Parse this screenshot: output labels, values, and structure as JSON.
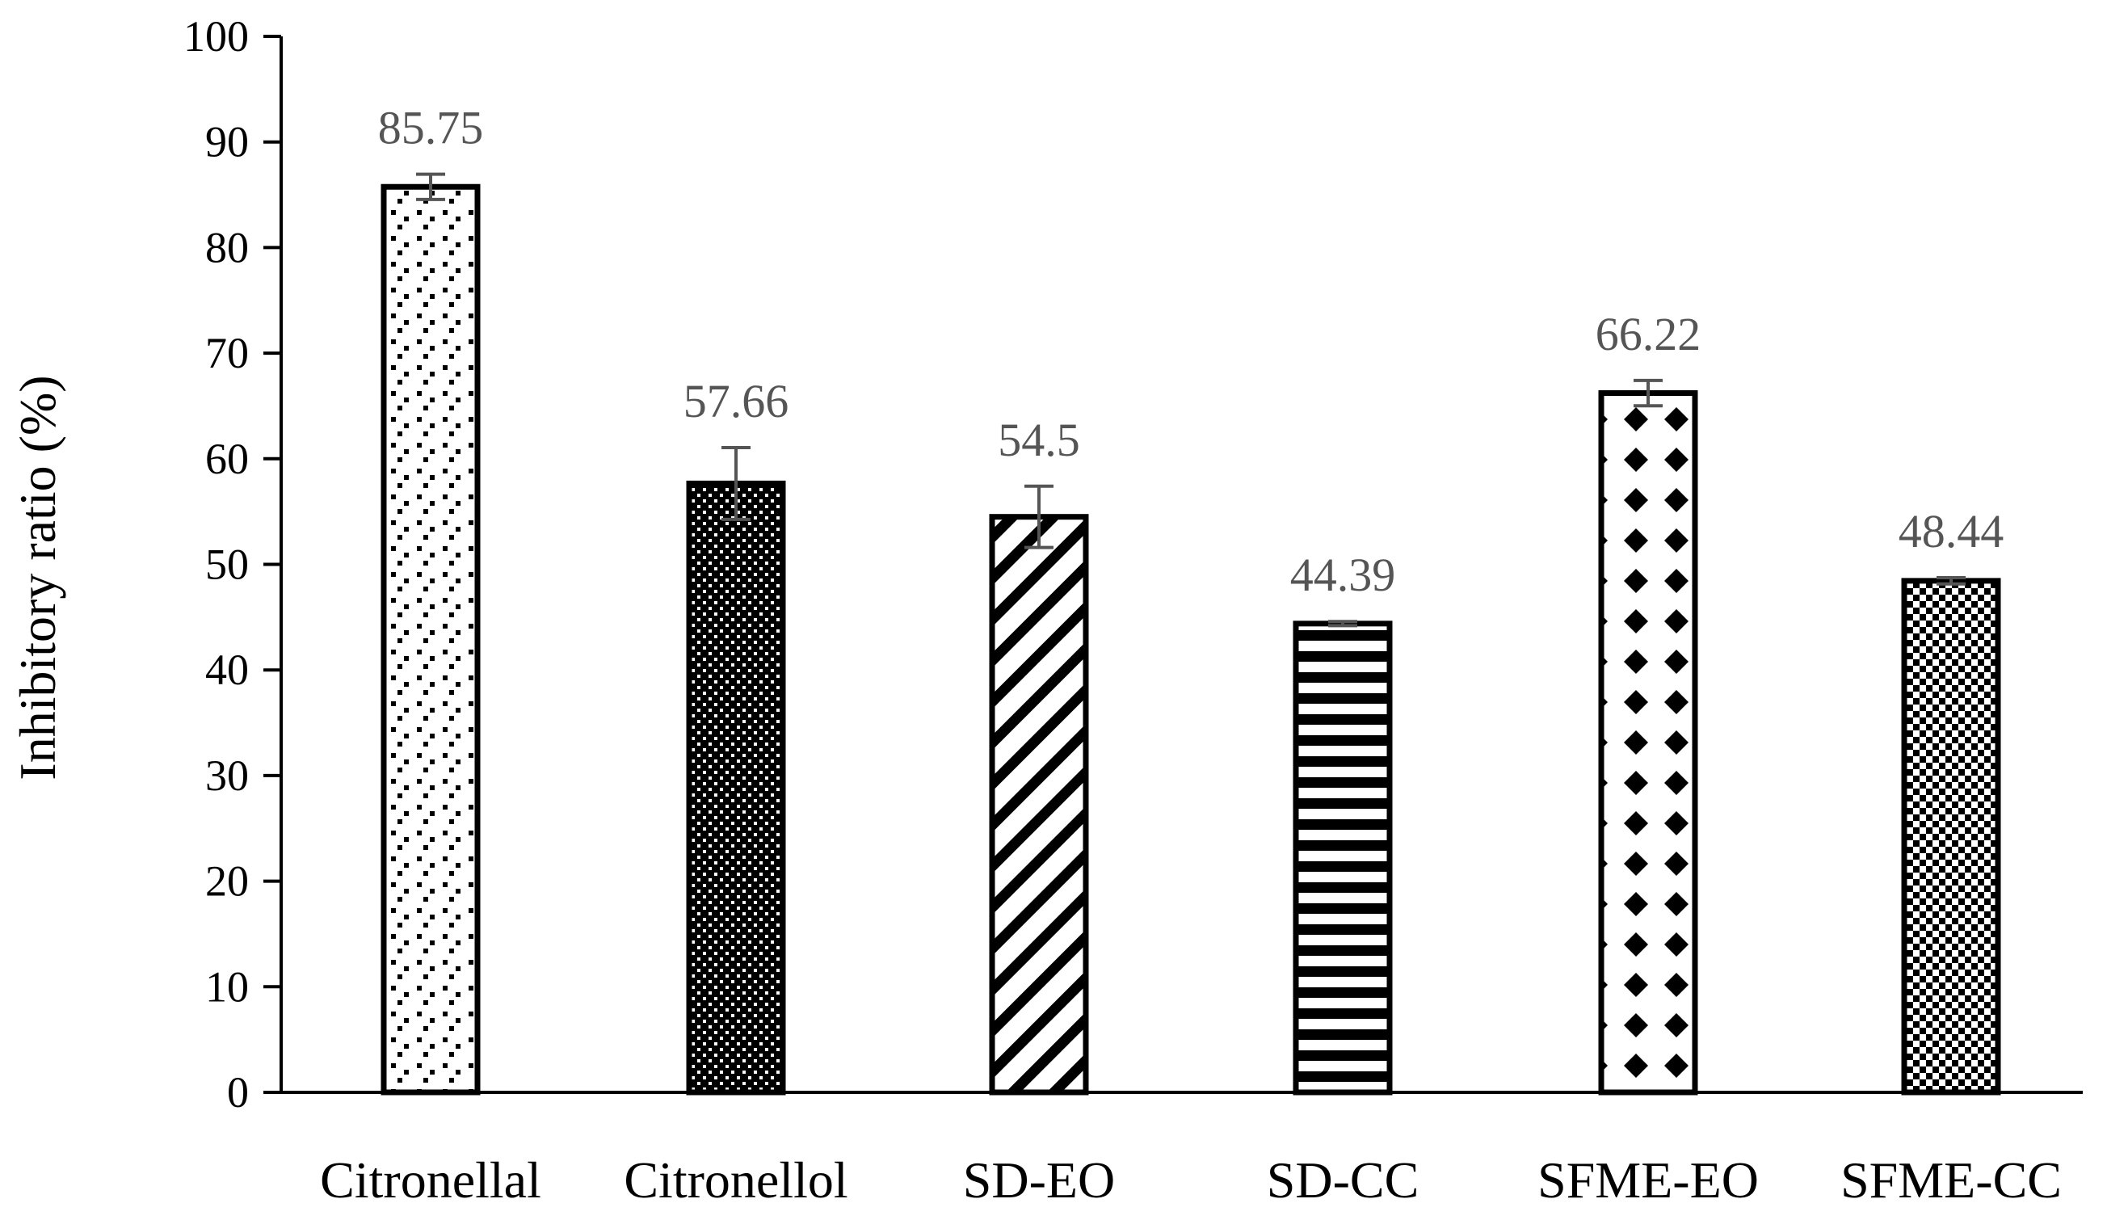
{
  "chart_data": {
    "type": "bar",
    "title": "",
    "xlabel": "",
    "ylabel": "Inhibitory ratio (%)",
    "ylim": [
      0,
      100
    ],
    "yticks": [
      0,
      10,
      20,
      30,
      40,
      50,
      60,
      70,
      80,
      90,
      100
    ],
    "grid": false,
    "legend": "none",
    "categories": [
      "Citronellal",
      "Citronellol",
      "SD-EO",
      "SD-CC",
      "SFME-EO",
      "SFME-CC"
    ],
    "values": [
      85.75,
      57.66,
      54.5,
      44.39,
      66.22,
      48.44
    ],
    "data_labels": [
      "85.75",
      "57.66",
      "54.5",
      "44.39",
      "66.22",
      "48.44"
    ],
    "error_bars": [
      1.2,
      3.4,
      2.9,
      0.2,
      1.2,
      0.3
    ],
    "patterns": [
      "sparse-dots",
      "dense-dots",
      "diagonal-stripes",
      "horizontal-stripes",
      "diamonds",
      "checkerboard"
    ],
    "colors": {
      "bar_fill": "#000000",
      "bar_background": "#ffffff",
      "error_bar": "#555555",
      "data_label": "#555555",
      "axis": "#000000"
    }
  }
}
